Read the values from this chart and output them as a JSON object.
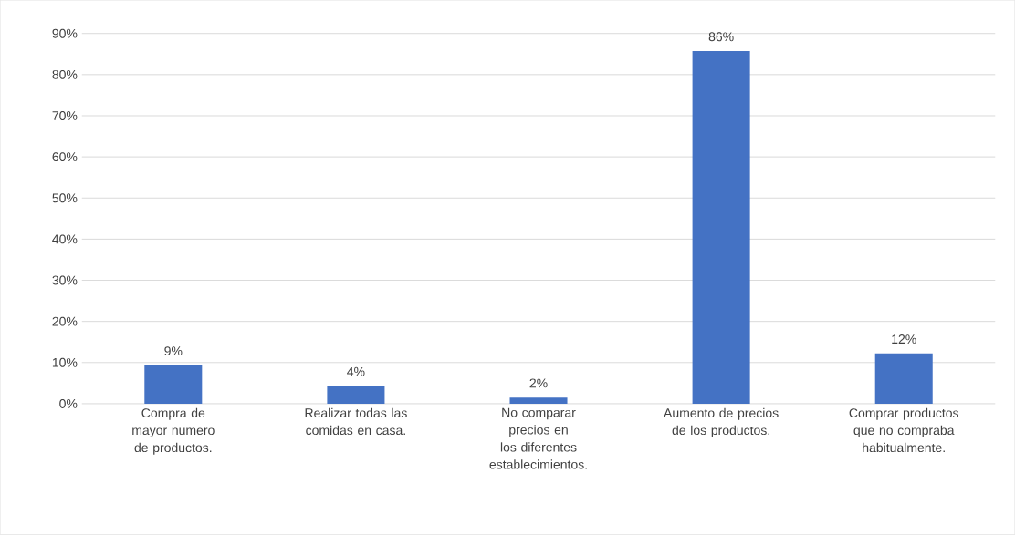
{
  "chart_data": {
    "type": "bar",
    "categories": [
      "Compra de mayor numero de productos.",
      "Realizar todas las comidas en casa.",
      "No comparar precios en los diferentes establecimientos.",
      "Aumento de precios de los productos.",
      "Comprar productos que no compraba habitualmente."
    ],
    "values": [
      9.3,
      4.3,
      1.5,
      85.7,
      12.2
    ],
    "value_labels": [
      "9%",
      "4%",
      "2%",
      "86%",
      "12%"
    ],
    "color": "#4472c4",
    "ylim": [
      0,
      90
    ],
    "yticks": [
      {
        "value": 0,
        "label": "0%"
      },
      {
        "value": 10,
        "label": "10%"
      },
      {
        "value": 20,
        "label": "20%"
      },
      {
        "value": 30,
        "label": "30%"
      },
      {
        "value": 40,
        "label": "40%"
      },
      {
        "value": 50,
        "label": "50%"
      },
      {
        "value": 60,
        "label": "60%"
      },
      {
        "value": 70,
        "label": "70%"
      },
      {
        "value": 80,
        "label": "80%"
      },
      {
        "value": 90,
        "label": "90%"
      }
    ],
    "grid": "y"
  }
}
